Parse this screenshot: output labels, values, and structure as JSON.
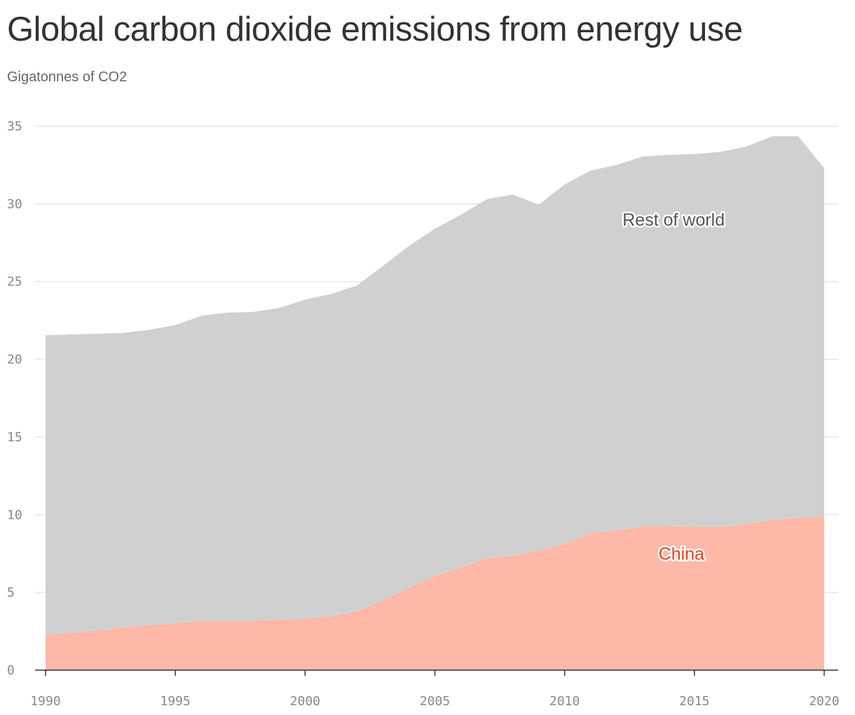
{
  "title": "Global carbon dioxide emissions from energy use",
  "subtitle": "Gigatonnes of CO2",
  "colors": {
    "rest_of_world": "#d0d0d0",
    "china": "#fdb8a8",
    "china_label": "#e8401c",
    "rest_label": "#555555",
    "grid": "#e0e0e0",
    "axis": "#333333"
  },
  "chart_data": {
    "type": "area",
    "stacked": true,
    "title": "Global carbon dioxide emissions from energy use",
    "subtitle": "Gigatonnes of CO2",
    "xlabel": "",
    "ylabel": "",
    "x": [
      1990,
      1991,
      1992,
      1993,
      1994,
      1995,
      1996,
      1997,
      1998,
      1999,
      2000,
      2001,
      2002,
      2003,
      2004,
      2005,
      2006,
      2007,
      2008,
      2009,
      2010,
      2011,
      2012,
      2013,
      2014,
      2015,
      2016,
      2017,
      2018,
      2019,
      2020
    ],
    "series": [
      {
        "name": "China",
        "values": [
          2.25,
          2.4,
          2.55,
          2.75,
          2.9,
          3.0,
          3.15,
          3.15,
          3.15,
          3.25,
          3.3,
          3.45,
          3.8,
          4.5,
          5.3,
          6.05,
          6.6,
          7.2,
          7.35,
          7.7,
          8.1,
          8.8,
          9.0,
          9.25,
          9.25,
          9.2,
          9.2,
          9.4,
          9.65,
          9.8,
          9.9
        ]
      },
      {
        "name": "Rest of world",
        "values": [
          19.3,
          19.2,
          19.1,
          18.95,
          19.0,
          19.2,
          19.65,
          19.85,
          19.9,
          20.05,
          20.55,
          20.75,
          20.95,
          21.5,
          22.0,
          22.35,
          22.7,
          23.1,
          23.25,
          22.25,
          23.15,
          23.35,
          23.5,
          23.8,
          23.9,
          24.0,
          24.15,
          24.3,
          24.7,
          24.55,
          22.4
        ]
      }
    ],
    "totals": [
      21.55,
      21.6,
      21.65,
      21.7,
      21.9,
      22.2,
      22.8,
      23.0,
      23.05,
      23.3,
      23.85,
      24.2,
      24.75,
      26.0,
      27.3,
      28.4,
      29.3,
      30.3,
      30.6,
      29.95,
      31.25,
      32.15,
      32.5,
      33.05,
      33.15,
      33.2,
      33.35,
      33.7,
      34.35,
      34.35,
      32.3
    ],
    "ylim": [
      0,
      35
    ],
    "yticks": [
      0,
      5,
      10,
      15,
      20,
      25,
      30,
      35
    ],
    "xticks": [
      1990,
      1995,
      2000,
      2005,
      2010,
      2015,
      2020
    ],
    "grid": true,
    "legend": "inline labels",
    "labels": {
      "rest_of_world": "Rest of world",
      "china": "China"
    }
  }
}
